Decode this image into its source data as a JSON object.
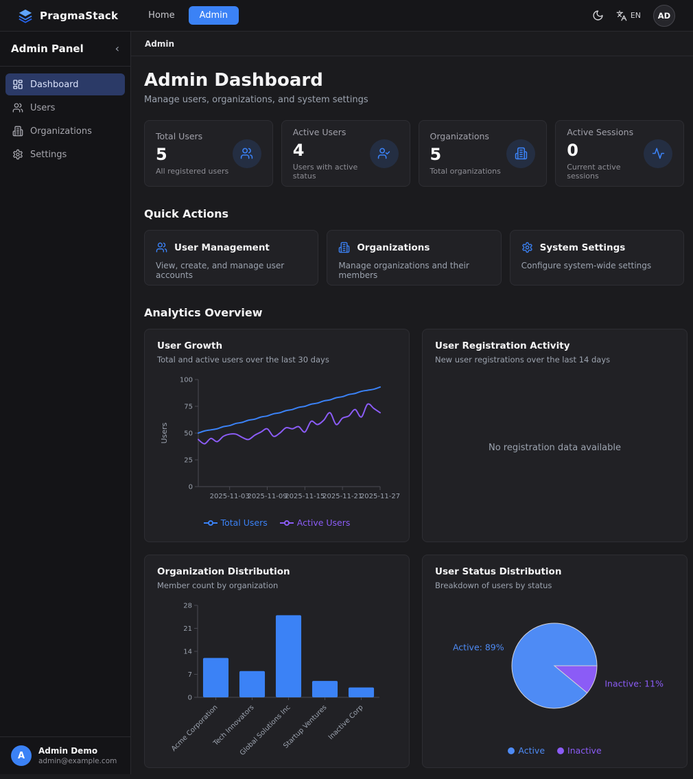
{
  "navbar": {
    "brand": "PragmaStack",
    "home_label": "Home",
    "admin_label": "Admin",
    "lang_label": "EN",
    "avatar_initials": "AD"
  },
  "sidebar": {
    "title": "Admin Panel",
    "collapse_glyph": "‹",
    "items": [
      {
        "label": "Dashboard",
        "icon": "dashboard-icon",
        "active": true
      },
      {
        "label": "Users",
        "icon": "users-icon",
        "active": false
      },
      {
        "label": "Organizations",
        "icon": "building-icon",
        "active": false
      },
      {
        "label": "Settings",
        "icon": "gear-icon",
        "active": false
      }
    ],
    "user_initial": "A",
    "user_name": "Admin Demo",
    "user_email": "admin@example.com"
  },
  "breadcrumb": "Admin",
  "header": {
    "title": "Admin Dashboard",
    "subtitle": "Manage users, organizations, and system settings"
  },
  "stats": [
    {
      "label": "Total Users",
      "value": "5",
      "description": "All registered users",
      "icon": "users-icon"
    },
    {
      "label": "Active Users",
      "value": "4",
      "description": "Users with active status",
      "icon": "user-check-icon"
    },
    {
      "label": "Organizations",
      "value": "5",
      "description": "Total organizations",
      "icon": "building-icon"
    },
    {
      "label": "Active Sessions",
      "value": "0",
      "description": "Current active sessions",
      "icon": "activity-icon"
    }
  ],
  "quick_actions": {
    "heading": "Quick Actions",
    "items": [
      {
        "title": "User Management",
        "description": "View, create, and manage user accounts",
        "icon": "users-icon"
      },
      {
        "title": "Organizations",
        "description": "Manage organizations and their members",
        "icon": "building-icon"
      },
      {
        "title": "System Settings",
        "description": "Configure system-wide settings",
        "icon": "gear-icon"
      }
    ]
  },
  "analytics_heading": "Analytics Overview",
  "chart_data": [
    {
      "id": "user-growth",
      "type": "line",
      "title": "User Growth",
      "subtitle": "Total and active users over the last 30 days",
      "ylabel": "Users",
      "ylim": [
        0,
        100
      ],
      "yticks": [
        0,
        25,
        50,
        75,
        100
      ],
      "grid": false,
      "legend_position": "bottom",
      "x": [
        "2025-10-29",
        "2025-10-30",
        "2025-10-31",
        "2025-11-01",
        "2025-11-02",
        "2025-11-03",
        "2025-11-04",
        "2025-11-05",
        "2025-11-06",
        "2025-11-07",
        "2025-11-08",
        "2025-11-09",
        "2025-11-10",
        "2025-11-11",
        "2025-11-12",
        "2025-11-13",
        "2025-11-14",
        "2025-11-15",
        "2025-11-16",
        "2025-11-17",
        "2025-11-18",
        "2025-11-19",
        "2025-11-20",
        "2025-11-21",
        "2025-11-22",
        "2025-11-23",
        "2025-11-24",
        "2025-11-25",
        "2025-11-26",
        "2025-11-27"
      ],
      "xticks": [
        "2025-11-03",
        "2025-11-09",
        "2025-11-15",
        "2025-11-21",
        "2025-11-27"
      ],
      "xtick_indices": [
        5,
        11,
        17,
        23,
        29
      ],
      "series": [
        {
          "name": "Total Users",
          "color": "#3b82f6",
          "values": [
            50,
            52,
            53,
            54,
            56,
            57,
            59,
            60,
            62,
            63,
            65,
            66,
            68,
            69,
            71,
            72,
            74,
            75,
            77,
            78,
            80,
            81,
            83,
            84,
            86,
            87,
            89,
            90,
            91,
            93
          ]
        },
        {
          "name": "Active Users",
          "color": "#8b5cf6",
          "values": [
            44,
            40,
            45,
            42,
            47,
            49,
            49,
            46,
            44,
            48,
            51,
            54,
            47,
            50,
            55,
            54,
            56,
            51,
            61,
            58,
            62,
            69,
            58,
            64,
            66,
            72,
            65,
            77,
            73,
            69
          ]
        }
      ]
    },
    {
      "id": "registration-activity",
      "type": "line",
      "title": "User Registration Activity",
      "subtitle": "New user registrations over the last 14 days",
      "empty_message": "No registration data available",
      "series": []
    },
    {
      "id": "org-distribution",
      "type": "bar",
      "title": "Organization Distribution",
      "subtitle": "Member count by organization",
      "categories": [
        "Acme Corporation",
        "Tech Innovators",
        "Global Solutions Inc",
        "Startup Ventures",
        "Inactive Corp"
      ],
      "values": [
        12,
        8,
        25,
        5,
        3
      ],
      "ylim": [
        0,
        28
      ],
      "yticks": [
        0,
        7,
        14,
        21,
        28
      ],
      "grid": false,
      "bar_color": "#3b82f6"
    },
    {
      "id": "user-status",
      "type": "pie",
      "title": "User Status Distribution",
      "subtitle": "Breakdown of users by status",
      "slices": [
        {
          "label": "Active",
          "pct": 89,
          "color": "#4e8bf5"
        },
        {
          "label": "Inactive",
          "pct": 11,
          "color": "#8b5cf6"
        }
      ],
      "legend_position": "bottom"
    }
  ],
  "colors": {
    "accent": "#3b82f6",
    "purple": "#8b5cf6",
    "page_bg": "#1b1b1e",
    "sidebar_bg": "#141417",
    "card_bg": "#212125",
    "border": "#2e2e33",
    "active_item_bg": "#2b3a67",
    "axis": "#4a4a52",
    "tick_text": "#9ca3af"
  }
}
